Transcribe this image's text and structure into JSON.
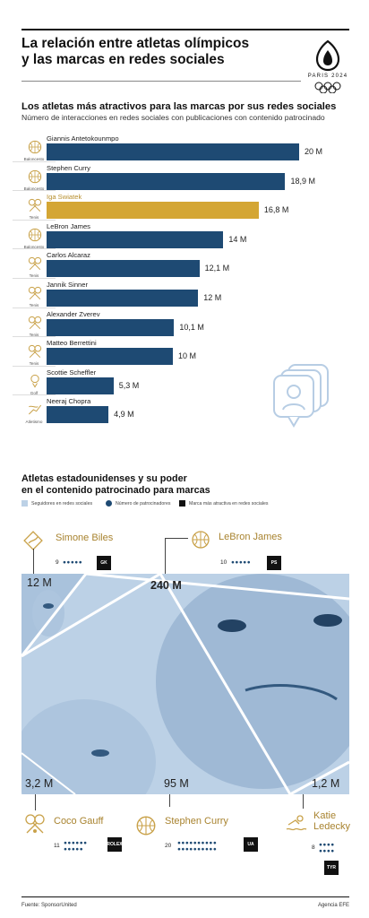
{
  "header": {
    "title_line1": "La relación entre atletas olímpicos",
    "title_line2": "y las marcas en redes sociales",
    "logo_text": "PARIS 2024"
  },
  "section1": {
    "title": "Los atletas más atractivos para las marcas por sus redes sociales",
    "subtitle": "Número de interacciones en redes sociales con publicaciones con contenido patrocinado"
  },
  "chart_data": {
    "type": "bar",
    "orientation": "horizontal",
    "title": "Los atletas más atractivos para las marcas por sus redes sociales",
    "subtitle": "Número de interacciones en redes sociales con publicaciones con contenido patrocinado",
    "unit": "M",
    "categories": [
      "Giannis Antetokounmpo",
      "Stephen Curry",
      "Iga Swiatek",
      "LeBron James",
      "Carlos Alcaraz",
      "Jannik Sinner",
      "Alexander Zverev",
      "Matteo Berrettini",
      "Scottie Scheffler",
      "Neeraj Chopra"
    ],
    "values": [
      20,
      18.9,
      16.8,
      14,
      12.1,
      12,
      10.1,
      10,
      5.3,
      4.9
    ],
    "value_labels": [
      "20 M",
      "18,9 M",
      "16,8 M",
      "14 M",
      "12,1 M",
      "12 M",
      "10,1 M",
      "10 M",
      "5,3 M",
      "4,9 M"
    ],
    "sports": [
      "Baloncesto",
      "Baloncesto",
      "Tenis",
      "Baloncesto",
      "Tenis",
      "Tenis",
      "Tenis",
      "Tenis",
      "Golf",
      "Atletismo"
    ],
    "highlight_index": 2,
    "bar_color": "#1e4a73",
    "highlight_color": "#d4a634",
    "xlim": [
      0,
      20
    ]
  },
  "section2": {
    "title_line1": "Atletas estadounidenses y su poder",
    "title_line2": "en el contenido patrocinado para marcas",
    "legend": [
      {
        "label": "Seguidores en redes sociales",
        "color": "#bcd1e6"
      },
      {
        "label": "Número de patrocinadores",
        "color": "#1e4a73"
      },
      {
        "label": "Marca más atractiva en redes sociales",
        "color": "#111111"
      }
    ],
    "athletes": [
      {
        "name": "Simone Biles",
        "followers": "12 M",
        "sponsors": "9",
        "brand": "GK"
      },
      {
        "name": "LeBron James",
        "followers": "240 M",
        "sponsors": "10",
        "brand": "PS"
      },
      {
        "name": "Coco Gauff",
        "followers": "3,2 M",
        "sponsors": "11",
        "brand": "ROLEX"
      },
      {
        "name": "Stephen Curry",
        "followers": "95 M",
        "sponsors": "20",
        "brand": "UA"
      },
      {
        "name_line1": "Katie",
        "name_line2": "Ledecky",
        "followers": "1,2 M",
        "sponsors": "8",
        "brand": "TYR"
      }
    ]
  },
  "footer": {
    "source": "Fuente: SponsorUnited",
    "agency": "Agencia EFE"
  },
  "colors": {
    "navy": "#1e4a73",
    "gold": "#d4a634",
    "light_blue": "#bcd1e6",
    "gold_text": "#a8832f"
  }
}
